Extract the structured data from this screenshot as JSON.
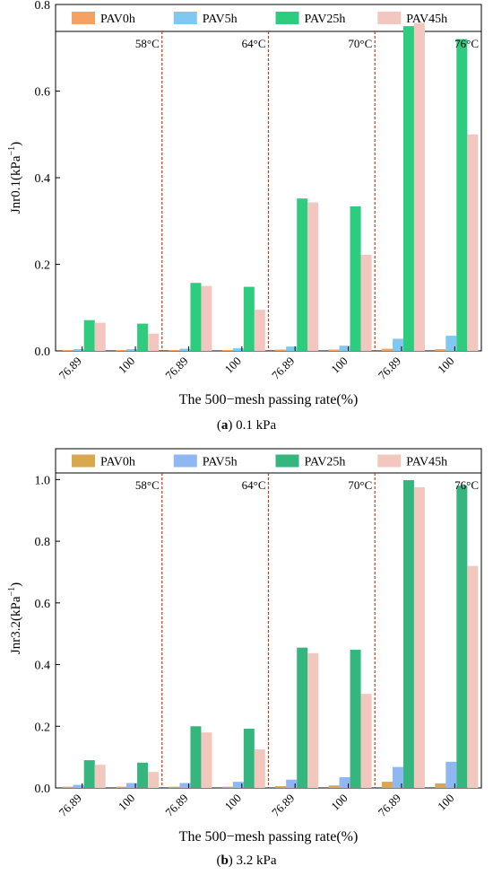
{
  "chart_data": [
    {
      "type": "bar",
      "panel": "a",
      "caption_letter": "a",
      "caption_text": "0.1 kPa",
      "ylabel_main": "Jnr0.1",
      "ylabel_unit": "(kPa",
      "ylabel_exp": "−1",
      "ylabel_close": ")",
      "xlabel": "The 500−mesh passing rate(%)",
      "categories": [
        "76.89",
        "100",
        "76.89",
        "100",
        "76.89",
        "100",
        "76.89",
        "100"
      ],
      "temperature_labels": [
        "58°C",
        "64°C",
        "70°C",
        "76°C"
      ],
      "ylim": [
        0,
        0.8
      ],
      "yticks": [
        "0.0",
        "0.2",
        "0.4",
        "0.6",
        "0.8"
      ],
      "legend_position": "top",
      "series": [
        {
          "name": "PAV0h",
          "color": "#F4A261",
          "values": [
            0.002,
            0.002,
            0.002,
            0.002,
            0.003,
            0.003,
            0.005,
            0.004
          ]
        },
        {
          "name": "PAV5h",
          "color": "#7EC8F2",
          "values": [
            0.004,
            0.004,
            0.005,
            0.006,
            0.01,
            0.012,
            0.028,
            0.035
          ]
        },
        {
          "name": "PAV25h",
          "color": "#2DCC7F",
          "values": [
            0.071,
            0.063,
            0.157,
            0.148,
            0.352,
            0.334,
            0.75,
            0.72
          ]
        },
        {
          "name": "PAV45h",
          "color": "#F4C6C0",
          "values": [
            0.065,
            0.04,
            0.15,
            0.095,
            0.343,
            0.222,
            0.757,
            0.5
          ]
        }
      ]
    },
    {
      "type": "bar",
      "panel": "b",
      "caption_letter": "b",
      "caption_text": "3.2 kPa",
      "ylabel_main": "Jnr3.2",
      "ylabel_unit": "(kPa",
      "ylabel_exp": "−1",
      "ylabel_close": ")",
      "xlabel": "The 500−mesh passing rate(%)",
      "categories": [
        "76.89",
        "100",
        "76.89",
        "100",
        "76.89",
        "100",
        "76.89",
        "100"
      ],
      "temperature_labels": [
        "58°C",
        "64°C",
        "70°C",
        "76°C"
      ],
      "ylim": [
        0,
        1.1
      ],
      "yticks": [
        "0.0",
        "0.2",
        "0.4",
        "0.6",
        "0.8",
        "1.0"
      ],
      "legend_position": "top",
      "series": [
        {
          "name": "PAV0h",
          "color": "#D9A84E",
          "values": [
            0.004,
            0.004,
            0.004,
            0.004,
            0.006,
            0.008,
            0.02,
            0.015
          ]
        },
        {
          "name": "PAV5h",
          "color": "#8FB7F2",
          "values": [
            0.01,
            0.016,
            0.016,
            0.02,
            0.027,
            0.035,
            0.068,
            0.085
          ]
        },
        {
          "name": "PAV25h",
          "color": "#35B67F",
          "values": [
            0.09,
            0.082,
            0.2,
            0.192,
            0.455,
            0.448,
            0.998,
            0.98
          ]
        },
        {
          "name": "PAV45h",
          "color": "#F2C8BE",
          "values": [
            0.075,
            0.052,
            0.18,
            0.125,
            0.437,
            0.305,
            0.975,
            0.72
          ]
        }
      ]
    }
  ]
}
